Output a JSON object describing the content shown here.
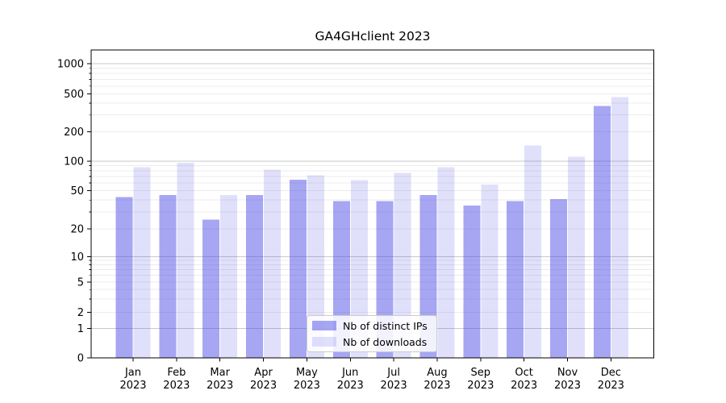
{
  "chart_data": {
    "type": "bar",
    "title": "GA4GHclient 2023",
    "categories": [
      "Jan 2023",
      "Feb 2023",
      "Mar 2023",
      "Apr 2023",
      "May 2023",
      "Jun 2023",
      "Jul 2023",
      "Aug 2023",
      "Sep 2023",
      "Oct 2023",
      "Nov 2023",
      "Dec 2023"
    ],
    "series": [
      {
        "name": "Nb of distinct IPs",
        "color": "#a6a6f3",
        "fill": "rgba(70,70,230,0.48)",
        "values": [
          43,
          45,
          25,
          45,
          65,
          39,
          39,
          45,
          35,
          39,
          41,
          375
        ]
      },
      {
        "name": "Nb of downloads",
        "color": "#dfdff8",
        "fill": "rgba(70,70,230,0.17)",
        "values": [
          87,
          96,
          45,
          82,
          72,
          64,
          76,
          87,
          58,
          144,
          111,
          465
        ]
      }
    ],
    "xlabel": "",
    "ylabel": "",
    "yscale": "symlog",
    "y_ticks": [
      0,
      1,
      2,
      5,
      10,
      20,
      50,
      100,
      200,
      500,
      1000
    ],
    "ylim": [
      0,
      1400
    ],
    "grid": true,
    "legend_position": "lower center",
    "colors": {
      "grid_major": "#c9c9c9",
      "grid_minor": "#ececec",
      "axis": "#000000",
      "background": "#ffffff"
    }
  }
}
